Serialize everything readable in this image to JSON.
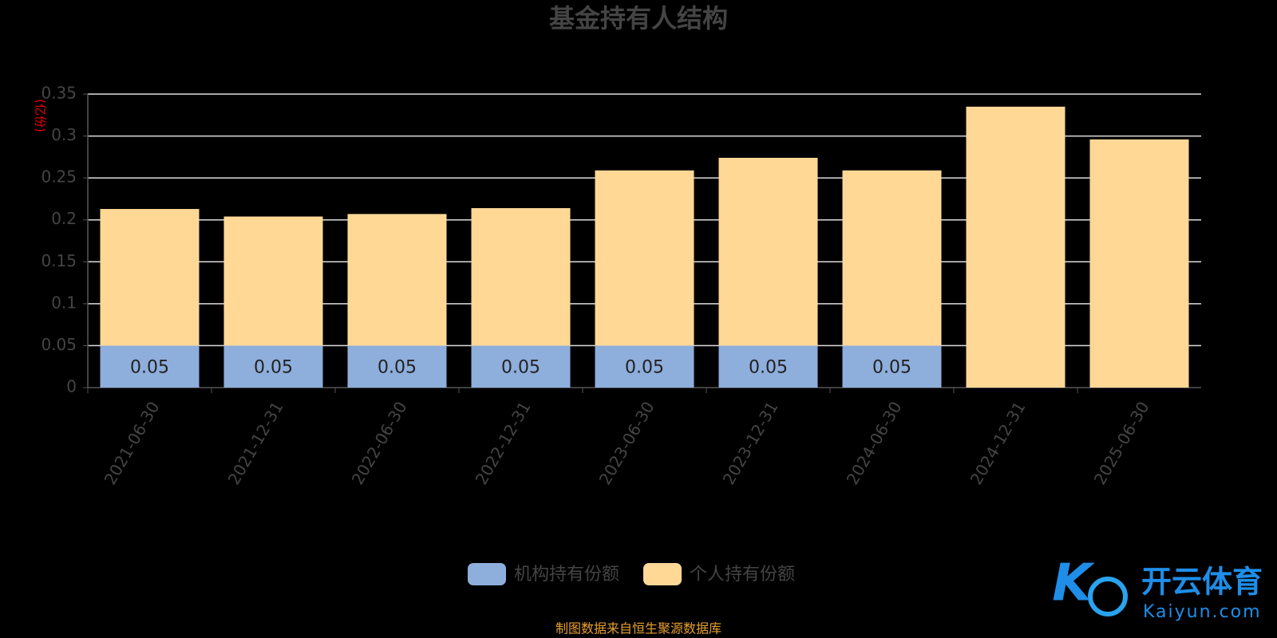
{
  "chart_data": {
    "type": "stacked-bar",
    "title": "基金持有人结构",
    "y_label": "(亿份)",
    "categories": [
      "2021-06-30",
      "2021-12-31",
      "2022-06-30",
      "2022-12-31",
      "2023-06-30",
      "2023-12-31",
      "2024-06-30",
      "2024-12-31",
      "2025-06-30"
    ],
    "series": [
      {
        "name": "机构持有份额",
        "color": "#8eaedc",
        "values": [
          0.05,
          0.05,
          0.05,
          0.05,
          0.05,
          0.05,
          0.05,
          0,
          0
        ],
        "value_labels": [
          "0.05",
          "0.05",
          "0.05",
          "0.05",
          "0.05",
          "0.05",
          "0.05",
          null,
          null
        ]
      },
      {
        "name": "个人持有份额",
        "color": "#ffd896",
        "values": [
          0.163,
          0.154,
          0.157,
          0.164,
          0.209,
          0.224,
          0.209,
          0.335,
          0.296
        ]
      }
    ],
    "ylim": [
      0,
      0.35
    ],
    "yticks": [
      0,
      0.05,
      0.1,
      0.15,
      0.2,
      0.25,
      0.3,
      0.35
    ],
    "grid": true,
    "source": "制图数据来自恒生聚源数据库"
  },
  "watermark": {
    "brand": "开云体育",
    "site": "Kaiyun.com"
  }
}
